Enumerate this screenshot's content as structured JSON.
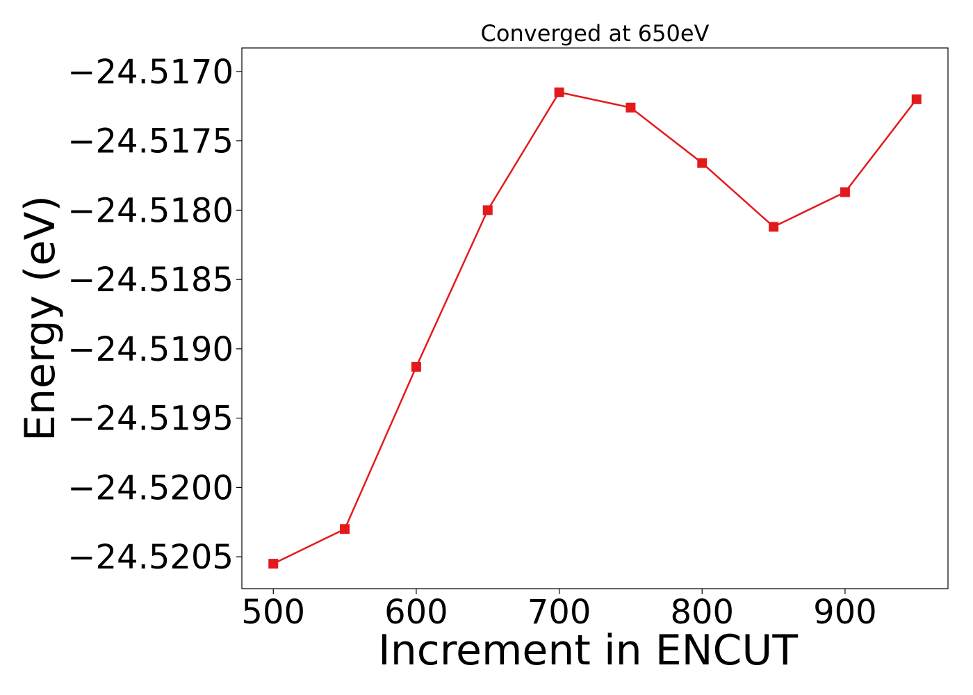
{
  "chart_data": {
    "type": "line",
    "title": "Converged at 650eV",
    "xlabel": "Increment in ENCUT",
    "ylabel": "Energy (eV)",
    "x": [
      500,
      550,
      600,
      650,
      700,
      750,
      800,
      850,
      900,
      950
    ],
    "series": [
      {
        "values": [
          -24.52055,
          -24.5203,
          -24.51913,
          -24.518,
          -24.51715,
          -24.51726,
          -24.51766,
          -24.51812,
          -24.51787,
          -24.5172
        ],
        "color": "#e31a1c",
        "marker": "square"
      }
    ],
    "xlim": [
      478,
      972
    ],
    "ylim": [
      -24.52073,
      -24.51683
    ],
    "xticks": [
      500,
      600,
      700,
      800,
      900
    ],
    "xtick_labels": [
      "500",
      "600",
      "700",
      "800",
      "900"
    ],
    "yticks": [
      -24.5205,
      -24.52,
      -24.5195,
      -24.519,
      -24.5185,
      -24.518,
      -24.5175,
      -24.517
    ],
    "ytick_labels": [
      "−24.5205",
      "−24.5200",
      "−24.5195",
      "−24.5190",
      "−24.5185",
      "−24.5180",
      "−24.5175",
      "−24.5170"
    ],
    "grid": false,
    "legend": false
  }
}
